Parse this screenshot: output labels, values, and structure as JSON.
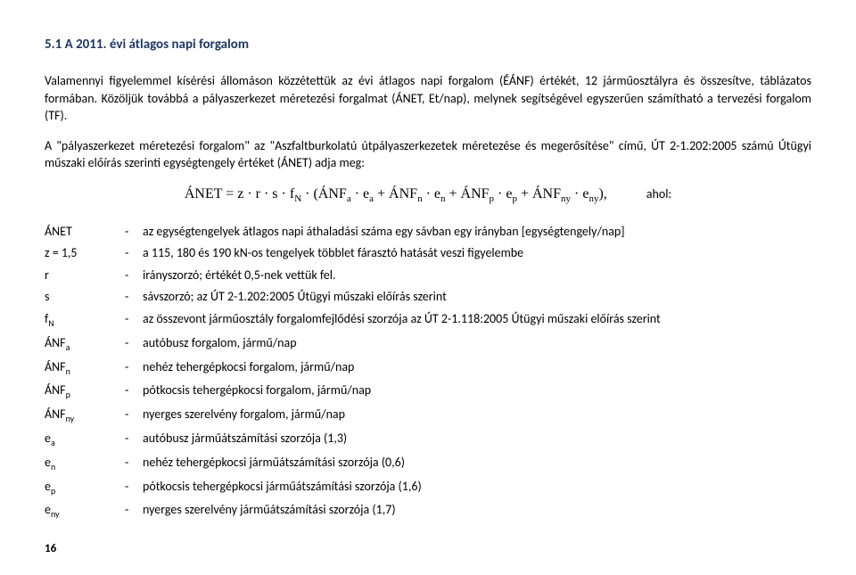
{
  "heading": "5.1 A 2011. évi átlagos napi forgalom",
  "para1": "Valamennyi figyelemmel kísérési állomáson közzétettük az évi átlagos napi forgalom (ÉÁNF) értékét, 12 járműosztályra és összesítve, táblázatos formában. Közöljük továbbá a pályaszerkezet méretezési forgalmat (ÁNET, Et/nap), melynek segítségével egyszerűen számítható a tervezési forgalom (TF).",
  "para2": "A \"pályaszerkezet méretezési forgalom\" az \"Aszfaltburkolatú útpályaszerkezetek méretezése és megerősítése\" című, ÚT 2-1.202:2005 számú Útügyi műszaki előírás szerinti egységtengely értéket (ÁNET) adja meg:",
  "formula_text": "ÁNET = z · r · s · f",
  "formula_sub_N": "N",
  "formula_paren_open": " · (ÁNF",
  "formula_a": "a",
  "formula_ea": " · e",
  "formula_plus1": " + ÁNF",
  "formula_n": "n",
  "formula_plus2": " + ÁNF",
  "formula_p": "p",
  "formula_plus3": " + ÁNF",
  "formula_ny": "ny",
  "formula_close": "),",
  "ahol": "ahol:",
  "defs": [
    {
      "term": "ÁNET",
      "sub": "",
      "desc": "az egységtengelyek átlagos napi áthaladási száma egy sávban egy irányban [egységtengely/nap]"
    },
    {
      "term": "z = 1,5",
      "sub": "",
      "desc": "a 115, 180 és 190 kN-os tengelyek többlet fárasztó hatását veszi figyelembe"
    },
    {
      "term": "r",
      "sub": "",
      "desc": "irányszorzó; értékét 0,5-nek vettük fel."
    },
    {
      "term": "s",
      "sub": "",
      "desc": "sávszorzó; az ÚT 2-1.202:2005 Útügyi műszaki előírás szerint"
    },
    {
      "term": "f",
      "sub": "N",
      "desc": "az összevont járműosztály forgalomfejlődési szorzója az ÚT 2-1.118:2005 Útügyi műszaki előírás szerint"
    },
    {
      "term": "ÁNF",
      "sub": "a",
      "desc": "autóbusz forgalom, jármű/nap"
    },
    {
      "term": "ÁNF",
      "sub": "n",
      "desc": "nehéz tehergépkocsi forgalom, jármű/nap"
    },
    {
      "term": "ÁNF",
      "sub": "p",
      "desc": "pótkocsis tehergépkocsi forgalom, jármű/nap"
    },
    {
      "term": "ÁNF",
      "sub": "ny",
      "desc": "nyerges szerelvény forgalom, jármű/nap"
    },
    {
      "term": "e",
      "sub": "a",
      "desc": "autóbusz járműátszámítási szorzója (1,3)"
    },
    {
      "term": "e",
      "sub": "n",
      "desc": "nehéz tehergépkocsi járműátszámítási szorzója (0,6)"
    },
    {
      "term": "e",
      "sub": "p",
      "desc": "pótkocsis tehergépkocsi járműátszámítási szorzója (1,6)"
    },
    {
      "term": "e",
      "sub": "ny",
      "desc": "nyerges szerelvény járműátszámítási szorzója (1,7)"
    }
  ],
  "dash": "-",
  "pagenum": "16"
}
